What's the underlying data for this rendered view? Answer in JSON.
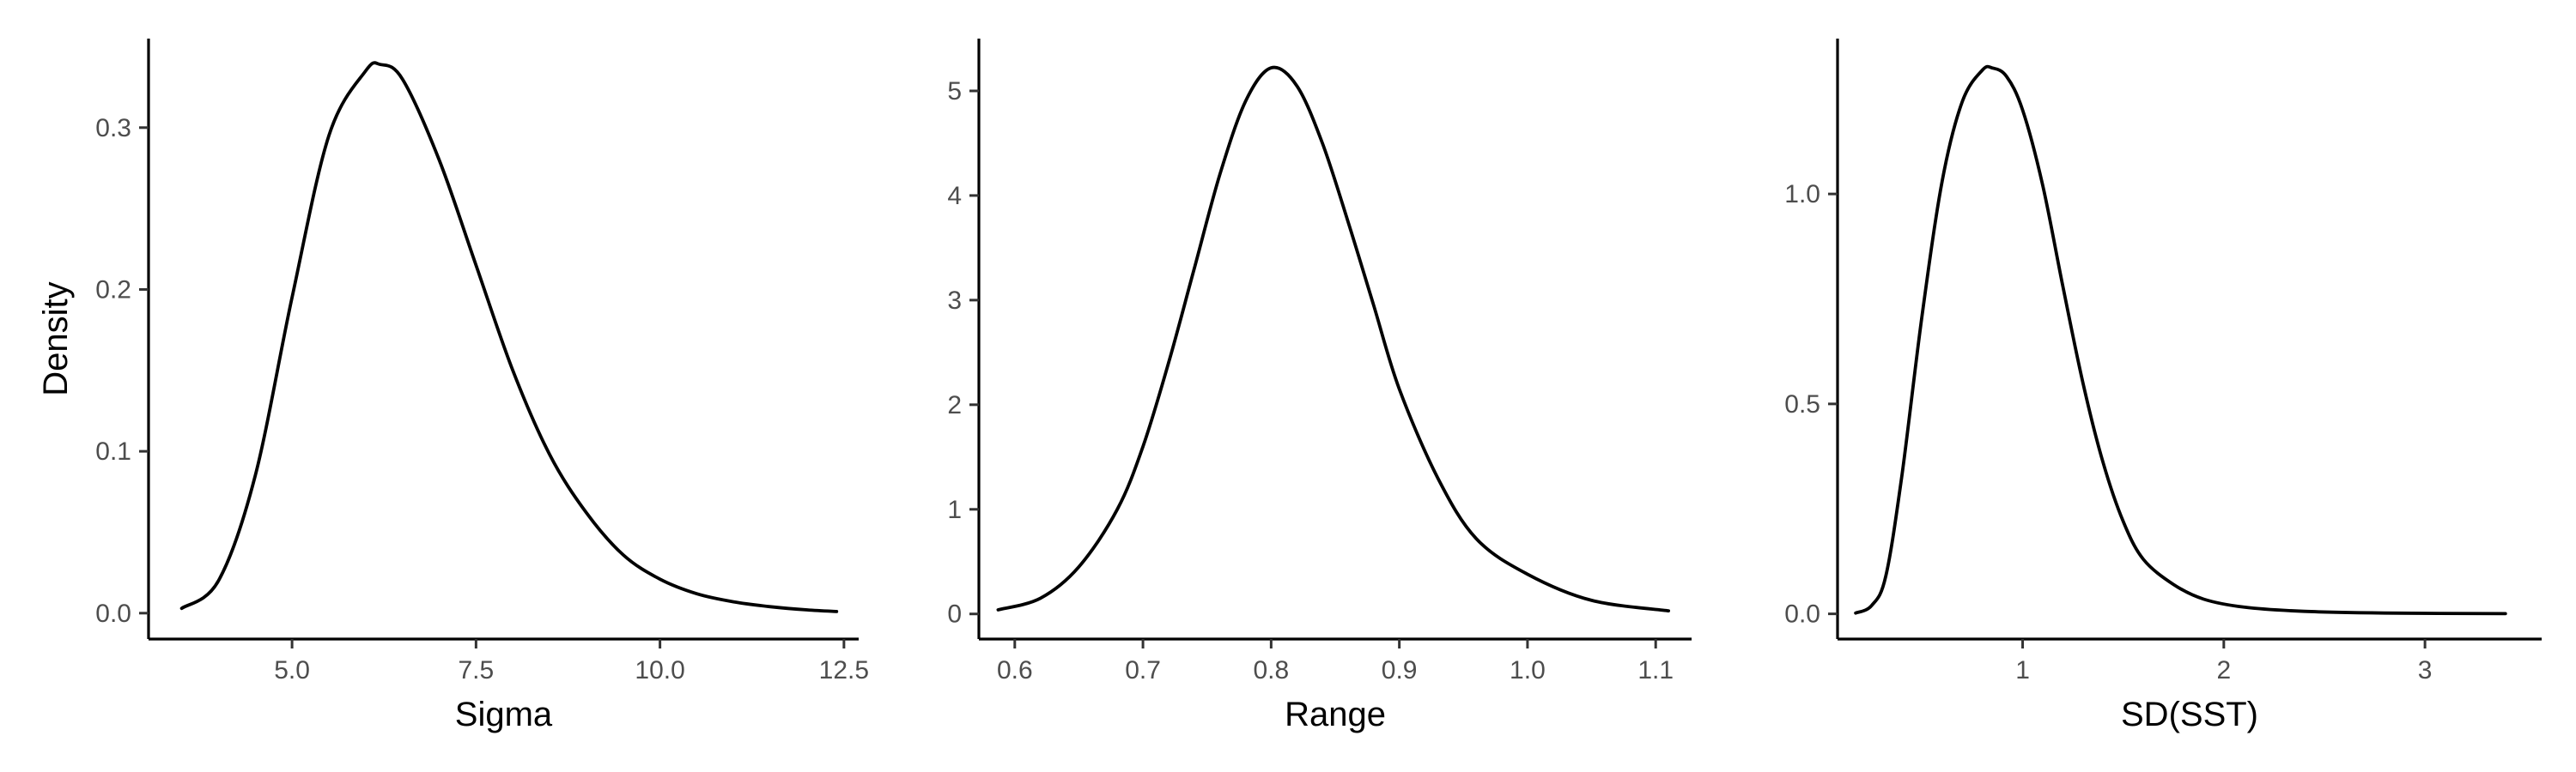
{
  "colors": {
    "background": "#ffffff",
    "axis": "#000000",
    "tick_label": "#4d4d4d",
    "curve": "#000000"
  },
  "chart_data": [
    {
      "type": "line",
      "title": "",
      "xlabel": "Sigma",
      "ylabel": "Density",
      "xlim": [
        3.05,
        12.7
      ],
      "ylim": [
        -0.016,
        0.355
      ],
      "xticks": [
        5.0,
        7.5,
        10.0,
        12.5
      ],
      "xtick_labels": [
        "5.0",
        "7.5",
        "10.0",
        "12.5"
      ],
      "yticks": [
        0.0,
        0.1,
        0.2,
        0.3
      ],
      "ytick_labels": [
        "0.0",
        "0.1",
        "0.2",
        "0.3"
      ],
      "grid": false,
      "series": [
        {
          "x": [
            3.5,
            4.0,
            4.5,
            5.0,
            5.5,
            6.0,
            6.2,
            6.5,
            7.0,
            7.5,
            8.0,
            8.5,
            9.0,
            9.5,
            10.0,
            10.5,
            11.0,
            11.5,
            12.0,
            12.4
          ],
          "y": [
            0.003,
            0.02,
            0.085,
            0.195,
            0.295,
            0.335,
            0.339,
            0.33,
            0.28,
            0.215,
            0.15,
            0.098,
            0.062,
            0.036,
            0.021,
            0.012,
            0.007,
            0.004,
            0.002,
            0.001
          ]
        }
      ]
    },
    {
      "type": "line",
      "title": "",
      "xlabel": "Range",
      "ylabel": "",
      "xlim": [
        0.572,
        1.128
      ],
      "ylim": [
        -0.24,
        5.5
      ],
      "xticks": [
        0.6,
        0.7,
        0.8,
        0.9,
        1.0,
        1.1
      ],
      "xtick_labels": [
        "0.6",
        "0.7",
        "0.8",
        "0.9",
        "1.0",
        "1.1"
      ],
      "yticks": [
        0,
        1,
        2,
        3,
        4,
        5
      ],
      "ytick_labels": [
        "0",
        "1",
        "2",
        "3",
        "4",
        "5"
      ],
      "grid": false,
      "series": [
        {
          "x": [
            0.587,
            0.62,
            0.65,
            0.68,
            0.7,
            0.72,
            0.74,
            0.76,
            0.78,
            0.8,
            0.82,
            0.84,
            0.86,
            0.88,
            0.9,
            0.93,
            0.96,
            1.0,
            1.05,
            1.11
          ],
          "y": [
            0.04,
            0.15,
            0.45,
            1.0,
            1.6,
            2.4,
            3.3,
            4.2,
            4.9,
            5.22,
            5.05,
            4.5,
            3.75,
            2.95,
            2.15,
            1.3,
            0.72,
            0.38,
            0.13,
            0.03
          ]
        }
      ]
    },
    {
      "type": "line",
      "title": "",
      "xlabel": "SD(SST)",
      "ylabel": "",
      "xlim": [
        0.08,
        3.58
      ],
      "ylim": [
        -0.06,
        1.37
      ],
      "xticks": [
        1,
        2,
        3
      ],
      "xtick_labels": [
        "1",
        "2",
        "3"
      ],
      "yticks": [
        0.0,
        0.5,
        1.0
      ],
      "ytick_labels": [
        "0.0",
        "0.5",
        "1.0"
      ],
      "grid": false,
      "series": [
        {
          "x": [
            0.17,
            0.25,
            0.32,
            0.4,
            0.5,
            0.6,
            0.7,
            0.8,
            0.85,
            0.92,
            1.0,
            1.1,
            1.2,
            1.3,
            1.4,
            1.5,
            1.6,
            1.75,
            1.9,
            2.1,
            2.4,
            2.8,
            3.4
          ],
          "y": [
            0.002,
            0.02,
            0.09,
            0.33,
            0.71,
            1.03,
            1.22,
            1.295,
            1.3,
            1.28,
            1.2,
            1.02,
            0.78,
            0.55,
            0.36,
            0.22,
            0.13,
            0.07,
            0.035,
            0.016,
            0.006,
            0.002,
            0.0005
          ]
        }
      ]
    }
  ]
}
